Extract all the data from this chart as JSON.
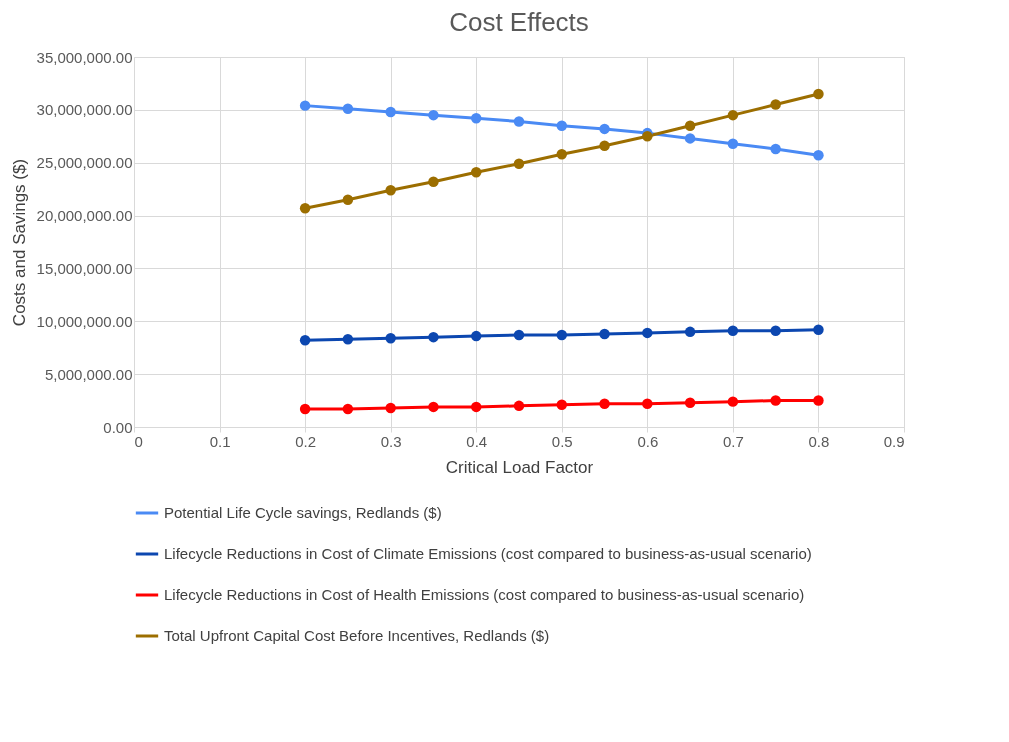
{
  "chart_data": {
    "type": "line",
    "title": "Cost Effects",
    "xlabel": "Critical Load Factor",
    "ylabel": "Costs and Savings ($)",
    "x": [
      0.2,
      0.25,
      0.3,
      0.35,
      0.4,
      0.45,
      0.5,
      0.55,
      0.6,
      0.65,
      0.7,
      0.75,
      0.8
    ],
    "series": [
      {
        "name": "Potential Life Cycle savings, Redlands ($)",
        "color": "#4a8af4",
        "values": [
          30400000,
          30100000,
          29800000,
          29500000,
          29200000,
          28900000,
          28500000,
          28200000,
          27800000,
          27300000,
          26800000,
          26300000,
          25700000
        ]
      },
      {
        "name": "Lifecycle Reductions in Cost of Climate Emissions (cost compared to business-as-usual scenario)",
        "color": "#0c47b0",
        "values": [
          8200000,
          8300000,
          8400000,
          8500000,
          8600000,
          8700000,
          8700000,
          8800000,
          8900000,
          9000000,
          9100000,
          9100000,
          9200000
        ]
      },
      {
        "name": "Lifecycle Reductions in Cost of Health Emissions (cost compared to business-as-usual scenario)",
        "color": "#ff0000",
        "values": [
          1700000,
          1700000,
          1800000,
          1900000,
          1900000,
          2000000,
          2100000,
          2200000,
          2200000,
          2300000,
          2400000,
          2500000,
          2500000
        ]
      },
      {
        "name": "Total Upfront Capital Cost Before Incentives, Redlands ($)",
        "color": "#9c6e00",
        "values": [
          20700000,
          21500000,
          22400000,
          23200000,
          24100000,
          24900000,
          25800000,
          26600000,
          27500000,
          28500000,
          29500000,
          30500000,
          31500000
        ]
      }
    ],
    "xlim": [
      0,
      0.9
    ],
    "xticks": [
      0,
      0.1,
      0.2,
      0.3,
      0.4,
      0.5,
      0.6,
      0.7,
      0.8,
      0.9
    ],
    "ylim": [
      0,
      35000000
    ],
    "yticks": [
      {
        "value": 0,
        "label": "0.00"
      },
      {
        "value": 5000000,
        "label": "5,000,000.00"
      },
      {
        "value": 10000000,
        "label": "10,000,000.00"
      },
      {
        "value": 15000000,
        "label": "15,000,000.00"
      },
      {
        "value": 20000000,
        "label": "20,000,000.00"
      },
      {
        "value": 25000000,
        "label": "25,000,000.00"
      },
      {
        "value": 30000000,
        "label": "30,000,000.00"
      },
      {
        "value": 35000000,
        "label": "35,000,000.00"
      }
    ],
    "grid": true,
    "legend": "bottom",
    "marker": "circle",
    "line_style": "solid"
  }
}
